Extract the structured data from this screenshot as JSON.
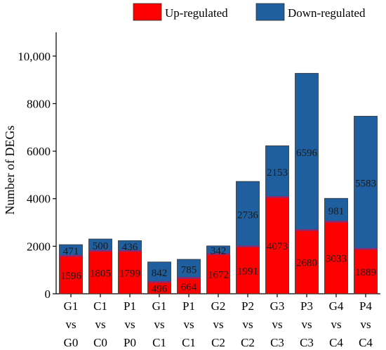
{
  "chart_data": {
    "type": "bar",
    "stacked": true,
    "title": "",
    "xlabel": "",
    "ylabel": "Number of DEGs",
    "ylim": [
      0,
      11000
    ],
    "yticks": [
      0,
      2000,
      4000,
      6000,
      8000,
      10000
    ],
    "ytick_labels": [
      "0",
      "2000",
      "4000",
      "6000",
      "8000",
      "10,000"
    ],
    "grid": false,
    "legend_position": "top-right",
    "categories": [
      [
        "G1",
        "vs",
        "G0"
      ],
      [
        "C1",
        "vs",
        "C0"
      ],
      [
        "P1",
        "vs",
        "P0"
      ],
      [
        "G1",
        "vs",
        "C1"
      ],
      [
        "P1",
        "vs",
        "C1"
      ],
      [
        "G2",
        "vs",
        "C2"
      ],
      [
        "P2",
        "vs",
        "C2"
      ],
      [
        "G3",
        "vs",
        "C3"
      ],
      [
        "P3",
        "vs",
        "C3"
      ],
      [
        "G4",
        "vs",
        "C4"
      ],
      [
        "P4",
        "vs",
        "C4"
      ]
    ],
    "series": [
      {
        "name": "Up-regulated",
        "color": "#ff0000",
        "values": [
          1596,
          1805,
          1799,
          496,
          664,
          1672,
          1991,
          4073,
          2680,
          3033,
          1889
        ]
      },
      {
        "name": "Down-regulated",
        "color": "#1f5f9f",
        "values": [
          471,
          500,
          436,
          842,
          785,
          342,
          2736,
          2153,
          6596,
          981,
          5583
        ]
      }
    ]
  }
}
